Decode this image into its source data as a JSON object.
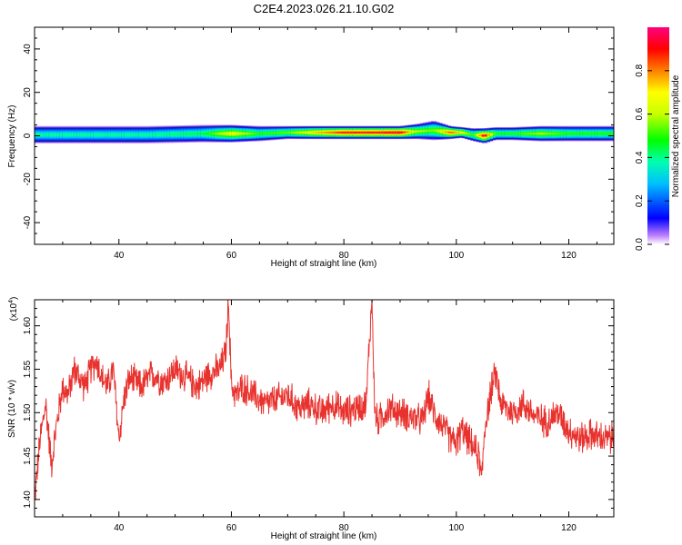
{
  "title": "C2E4.2023.026.21.10.G02",
  "chart_data": [
    {
      "type": "heatmap",
      "xlabel": "Height of straight line (km)",
      "ylabel": "Frequency (Hz)",
      "xlim": [
        25,
        128
      ],
      "ylim": [
        -50,
        50
      ],
      "xticks": [
        40,
        60,
        80,
        100,
        120
      ],
      "yticks": [
        -40,
        -20,
        0,
        20,
        40
      ],
      "colorbar": {
        "label": "Normalized spectral amplitude",
        "range": [
          0,
          1
        ],
        "ticks": [
          0.0,
          0.2,
          0.4,
          0.6,
          0.8
        ]
      },
      "band": {
        "x": [
          25,
          35,
          45,
          55,
          60,
          65,
          70,
          75,
          80,
          85,
          90,
          93,
          96,
          99,
          101,
          103,
          105,
          107,
          110,
          115,
          120,
          128
        ],
        "center_hz": [
          0.5,
          0.5,
          0.5,
          1,
          1,
          1,
          1.5,
          1.5,
          1.5,
          1.5,
          1.5,
          2,
          2.5,
          1.5,
          1.5,
          0.5,
          0,
          1,
          1,
          1,
          1,
          1
        ],
        "halfwidth_hz": [
          4,
          4,
          4,
          4,
          4,
          3.5,
          3,
          3,
          3,
          3,
          3,
          3.5,
          4.5,
          3,
          2.5,
          3,
          3.5,
          3,
          3,
          3.5,
          3.5,
          3.5
        ],
        "peak_amplitude": [
          0.4,
          0.4,
          0.4,
          0.45,
          0.7,
          0.5,
          0.55,
          0.75,
          0.9,
          0.9,
          0.95,
          0.6,
          0.55,
          0.85,
          0.7,
          0.5,
          0.95,
          0.5,
          0.5,
          0.6,
          0.5,
          0.5
        ]
      }
    },
    {
      "type": "line",
      "xlabel": "Height of straight line (km)",
      "ylabel": "SNR (10 * v/v)",
      "y_scale_label": "(x10",
      "y_scale_exp": "4",
      "y_scale_close": ")",
      "xlim": [
        25,
        128
      ],
      "ylim": [
        1.38,
        1.63
      ],
      "xticks": [
        40,
        60,
        80,
        100,
        120
      ],
      "yticks": [
        1.4,
        1.45,
        1.5,
        1.55,
        1.6
      ],
      "ytick_labels": [
        "1.40",
        "1.45",
        "1.50",
        "1.55",
        "1.60"
      ],
      "color": "#e8322e",
      "series": [
        {
          "x": [
            25,
            26,
            27,
            28,
            29,
            30,
            31,
            32,
            33,
            34,
            35,
            36,
            37,
            38,
            39,
            40,
            41,
            42,
            44,
            46,
            48,
            50,
            52,
            54,
            56,
            58,
            59,
            59.5,
            60,
            61,
            62,
            64,
            66,
            68,
            70,
            72,
            74,
            76,
            78,
            80,
            82,
            84,
            84.5,
            85,
            85.5,
            86,
            88,
            90,
            92,
            94,
            95,
            96,
            98,
            99,
            100,
            101,
            102,
            103,
            104,
            104.5,
            105,
            106,
            107,
            108,
            110,
            112,
            114,
            116,
            118,
            120,
            122,
            124,
            126,
            128
          ],
          "y": [
            1.4,
            1.47,
            1.51,
            1.44,
            1.49,
            1.53,
            1.52,
            1.55,
            1.54,
            1.53,
            1.55,
            1.56,
            1.54,
            1.53,
            1.55,
            1.47,
            1.52,
            1.54,
            1.53,
            1.545,
            1.535,
            1.55,
            1.54,
            1.53,
            1.545,
            1.55,
            1.57,
            1.63,
            1.53,
            1.52,
            1.53,
            1.52,
            1.51,
            1.515,
            1.52,
            1.505,
            1.51,
            1.5,
            1.51,
            1.5,
            1.505,
            1.51,
            1.58,
            1.63,
            1.5,
            1.49,
            1.505,
            1.5,
            1.495,
            1.49,
            1.52,
            1.5,
            1.48,
            1.47,
            1.465,
            1.48,
            1.47,
            1.46,
            1.45,
            1.42,
            1.48,
            1.52,
            1.545,
            1.51,
            1.5,
            1.51,
            1.495,
            1.49,
            1.5,
            1.48,
            1.47,
            1.475,
            1.47,
            1.47
          ]
        }
      ]
    }
  ]
}
